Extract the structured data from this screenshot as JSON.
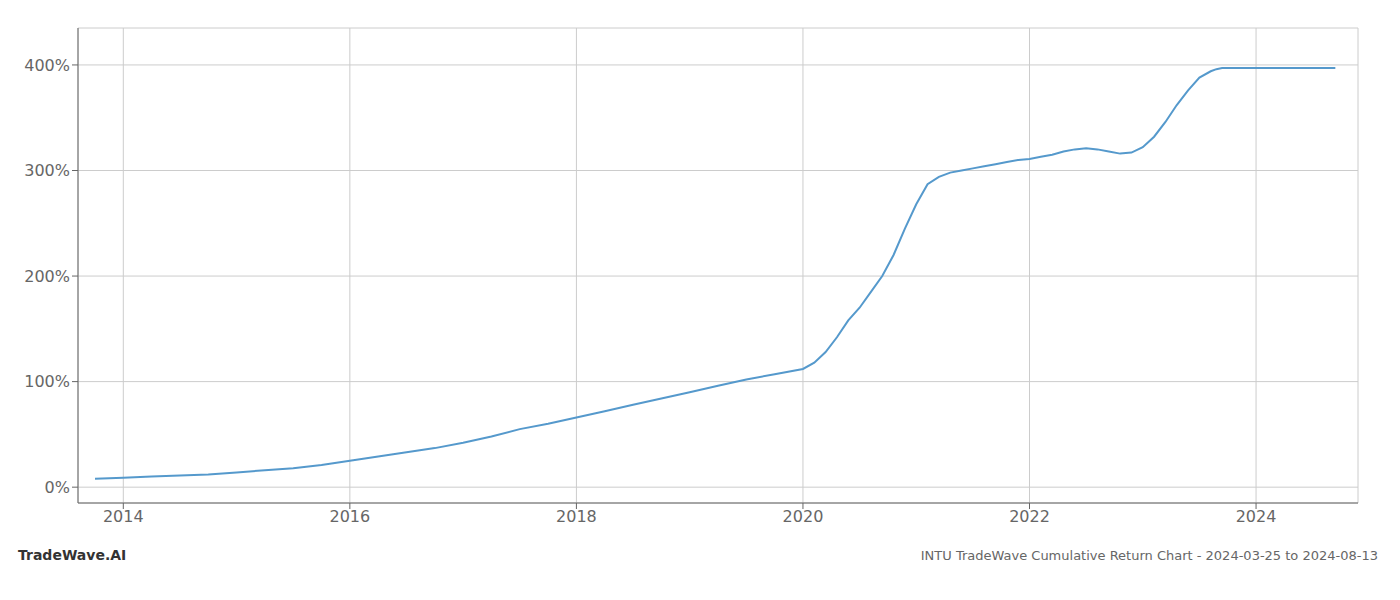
{
  "chart_data": {
    "type": "line",
    "title": "INTU TradeWave Cumulative Return Chart - 2024-03-25 to 2024-08-13",
    "annotations": [
      "TradeWave.AI"
    ],
    "color": "#5599cc",
    "grid": true,
    "xlim": [
      2013.6,
      2024.9
    ],
    "xticks": [
      2014,
      2016,
      2018,
      2020,
      2022,
      2024
    ],
    "ylim": [
      -15,
      435
    ],
    "yticks": [
      {
        "value": 0,
        "label": "0%"
      },
      {
        "value": 100,
        "label": "100%"
      },
      {
        "value": 200,
        "label": "200%"
      },
      {
        "value": 300,
        "label": "300%"
      },
      {
        "value": 400,
        "label": "400%"
      }
    ],
    "x": [
      2013.75,
      2014.0,
      2014.25,
      2014.5,
      2014.75,
      2015.0,
      2015.25,
      2015.5,
      2015.75,
      2016.0,
      2016.25,
      2016.5,
      2016.75,
      2017.0,
      2017.25,
      2017.5,
      2017.75,
      2018.0,
      2018.25,
      2018.5,
      2018.75,
      2019.0,
      2019.25,
      2019.5,
      2019.75,
      2020.0,
      2020.1,
      2020.2,
      2020.3,
      2020.4,
      2020.5,
      2020.6,
      2020.7,
      2020.8,
      2020.9,
      2021.0,
      2021.1,
      2021.2,
      2021.3,
      2021.4,
      2021.5,
      2021.6,
      2021.7,
      2021.8,
      2021.9,
      2022.0,
      2022.1,
      2022.2,
      2022.3,
      2022.4,
      2022.5,
      2022.6,
      2022.7,
      2022.8,
      2022.9,
      2023.0,
      2023.1,
      2023.2,
      2023.3,
      2023.4,
      2023.5,
      2023.6,
      2023.65,
      2023.7,
      2023.8,
      2024.0,
      2024.2,
      2024.4,
      2024.6,
      2024.7
    ],
    "values": [
      8,
      9,
      10,
      11,
      12,
      14,
      16,
      18,
      21,
      25,
      29,
      33,
      37,
      42,
      48,
      55,
      60,
      66,
      72,
      78,
      84,
      90,
      96,
      102,
      107,
      112,
      118,
      128,
      142,
      158,
      170,
      185,
      200,
      220,
      245,
      268,
      287,
      294,
      298,
      300,
      302,
      304,
      306,
      308,
      310,
      311,
      313,
      315,
      318,
      320,
      321,
      320,
      318,
      316,
      317,
      322,
      332,
      346,
      362,
      376,
      388,
      394,
      396,
      397,
      397,
      397,
      397,
      397,
      397,
      397
    ]
  }
}
